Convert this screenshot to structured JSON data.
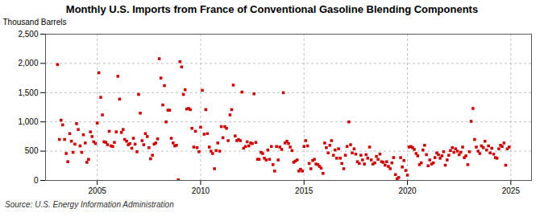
{
  "chart_data": {
    "type": "scatter",
    "title": "Monthly U.S. Imports from France of Conventional Gasoline Blending Components",
    "ylabel": "Thousand Barrels",
    "source": "Source: U.S. Energy Information Administration",
    "color": "#cc0000",
    "marker": "square",
    "grid": true,
    "xlim": [
      2002.5,
      2026.0
    ],
    "xticks": [
      2005,
      2010,
      2015,
      2020,
      2025
    ],
    "ylim": [
      0,
      2500
    ],
    "yticks": [
      0,
      500,
      {
        "value": 1000,
        "label": "1,000"
      },
      {
        "value": 1500,
        "label": "1,500"
      },
      {
        "value": 2000,
        "label": "2,000"
      },
      {
        "value": 2500,
        "label": "2,500"
      }
    ],
    "x": [
      2003.08,
      2003.17,
      2003.25,
      2003.33,
      2003.42,
      2003.5,
      2003.58,
      2003.67,
      2003.75,
      2003.83,
      2003.92,
      2004.0,
      2004.08,
      2004.17,
      2004.25,
      2004.33,
      2004.42,
      2004.5,
      2004.58,
      2004.67,
      2004.75,
      2004.83,
      2004.92,
      2005.0,
      2005.08,
      2005.17,
      2005.25,
      2005.33,
      2005.42,
      2005.5,
      2005.58,
      2005.67,
      2005.75,
      2005.83,
      2005.92,
      2006.0,
      2006.08,
      2006.17,
      2006.25,
      2006.33,
      2006.42,
      2006.5,
      2006.58,
      2006.67,
      2006.75,
      2006.83,
      2006.92,
      2007.0,
      2007.08,
      2007.17,
      2007.25,
      2007.33,
      2007.42,
      2007.5,
      2007.58,
      2007.67,
      2007.75,
      2007.83,
      2007.92,
      2008.0,
      2008.08,
      2008.17,
      2008.25,
      2008.33,
      2008.42,
      2008.5,
      2008.58,
      2008.67,
      2008.75,
      2008.83,
      2008.92,
      2009.0,
      2009.08,
      2009.17,
      2009.25,
      2009.33,
      2009.42,
      2009.5,
      2009.58,
      2009.67,
      2009.75,
      2009.83,
      2009.92,
      2010.0,
      2010.08,
      2010.17,
      2010.25,
      2010.33,
      2010.42,
      2010.5,
      2010.58,
      2010.67,
      2010.75,
      2010.83,
      2010.92,
      2011.0,
      2011.08,
      2011.17,
      2011.25,
      2011.33,
      2011.42,
      2011.5,
      2011.58,
      2011.67,
      2011.75,
      2011.83,
      2011.92,
      2012.0,
      2012.08,
      2012.17,
      2012.25,
      2012.33,
      2012.42,
      2012.5,
      2012.58,
      2012.67,
      2012.75,
      2012.83,
      2012.92,
      2013.0,
      2013.08,
      2013.17,
      2013.25,
      2013.33,
      2013.42,
      2013.5,
      2013.58,
      2013.67,
      2013.75,
      2013.83,
      2013.92,
      2014.0,
      2014.08,
      2014.17,
      2014.25,
      2014.33,
      2014.42,
      2014.5,
      2014.58,
      2014.67,
      2014.75,
      2014.83,
      2014.92,
      2015.0,
      2015.08,
      2015.17,
      2015.25,
      2015.33,
      2015.42,
      2015.5,
      2015.58,
      2015.67,
      2015.75,
      2015.83,
      2015.92,
      2016.0,
      2016.08,
      2016.17,
      2016.25,
      2016.33,
      2016.42,
      2016.5,
      2016.58,
      2016.67,
      2016.75,
      2016.83,
      2016.92,
      2017.0,
      2017.08,
      2017.17,
      2017.25,
      2017.33,
      2017.42,
      2017.5,
      2017.58,
      2017.67,
      2017.75,
      2017.83,
      2017.92,
      2018.0,
      2018.08,
      2018.17,
      2018.25,
      2018.33,
      2018.42,
      2018.5,
      2018.58,
      2018.67,
      2018.75,
      2018.83,
      2018.92,
      2019.0,
      2019.08,
      2019.17,
      2019.25,
      2019.33,
      2019.42,
      2019.5,
      2019.58,
      2019.67,
      2019.75,
      2019.83,
      2019.92,
      2020.0,
      2020.08,
      2020.17,
      2020.25,
      2020.33,
      2020.42,
      2020.5,
      2020.58,
      2020.67,
      2020.75,
      2020.83,
      2020.92,
      2021.0,
      2021.08,
      2021.17,
      2021.25,
      2021.33,
      2021.42,
      2021.5,
      2021.58,
      2021.67,
      2021.75,
      2021.83,
      2021.92,
      2022.0,
      2022.08,
      2022.17,
      2022.25,
      2022.33,
      2022.42,
      2022.5,
      2022.58,
      2022.67,
      2022.75,
      2022.83,
      2022.92,
      2023.0,
      2023.08,
      2023.17,
      2023.25,
      2023.33,
      2023.42,
      2023.5,
      2023.58,
      2023.67,
      2023.75,
      2023.83,
      2023.92,
      2024.0,
      2024.08,
      2024.17,
      2024.25,
      2024.33,
      2024.42,
      2024.5,
      2024.58,
      2024.67,
      2024.75,
      2024.83,
      2024.92
    ],
    "values": [
      1980,
      700,
      1030,
      950,
      700,
      460,
      320,
      800,
      670,
      480,
      620,
      970,
      870,
      590,
      480,
      780,
      640,
      310,
      360,
      830,
      750,
      660,
      630,
      980,
      1840,
      1420,
      1120,
      660,
      650,
      610,
      840,
      590,
      580,
      650,
      830,
      1780,
      1390,
      820,
      870,
      700,
      670,
      610,
      630,
      550,
      720,
      620,
      490,
      1470,
      1150,
      680,
      610,
      800,
      750,
      560,
      370,
      430,
      620,
      640,
      710,
      2080,
      1750,
      1290,
      1620,
      1000,
      1200,
      1200,
      720,
      640,
      590,
      600,
      10,
      2030,
      1940,
      1470,
      1550,
      1220,
      1230,
      1210,
      890,
      570,
      840,
      560,
      490,
      910,
      1540,
      790,
      1210,
      800,
      570,
      500,
      460,
      200,
      510,
      640,
      500,
      920,
      730,
      920,
      890,
      680,
      1120,
      1210,
      1630,
      760,
      680,
      700,
      680,
      1510,
      550,
      580,
      660,
      590,
      640,
      630,
      1480,
      650,
      360,
      360,
      480,
      460,
      380,
      350,
      520,
      360,
      580,
      270,
      160,
      580,
      350,
      570,
      530,
      1500,
      640,
      670,
      630,
      570,
      510,
      310,
      330,
      350,
      160,
      190,
      160,
      580,
      680,
      590,
      290,
      200,
      340,
      360,
      280,
      270,
      240,
      210,
      120,
      640,
      560,
      470,
      600,
      680,
      430,
      520,
      380,
      540,
      380,
      290,
      200,
      430,
      580,
      1000,
      610,
      470,
      540,
      450,
      320,
      290,
      430,
      350,
      280,
      440,
      380,
      570,
      350,
      280,
      300,
      410,
      360,
      450,
      320,
      310,
      260,
      320,
      240,
      200,
      300,
      390,
      100,
      30,
      50,
      390,
      230,
      340,
      170,
      90,
      570,
      580,
      560,
      530,
      460,
      420,
      270,
      300,
      520,
      600,
      440,
      250,
      350,
      280,
      300,
      390,
      470,
      440,
      380,
      420,
      490,
      260,
      350,
      430,
      510,
      560,
      480,
      540,
      500,
      440,
      480,
      570,
      390,
      420,
      270,
      490,
      1010,
      1230,
      700,
      570,
      500,
      460,
      590,
      560,
      670,
      520,
      590,
      470,
      550,
      450,
      390,
      380,
      540,
      600,
      580,
      640,
      260,
      540,
      570
    ]
  }
}
